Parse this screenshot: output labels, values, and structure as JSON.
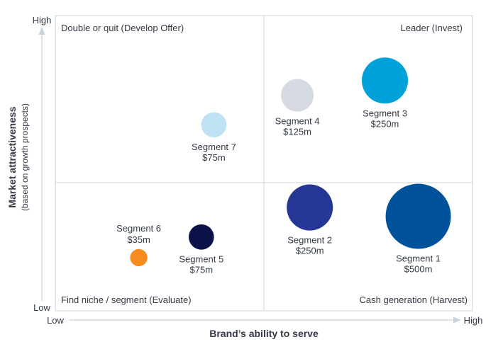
{
  "chart_data": {
    "type": "bubble",
    "title": "",
    "xlabel": "Brand’s ability to serve",
    "ylabel": "Market attractiveness",
    "ylabel_sub": "(based on growth prospects)",
    "x_axis": {
      "low_label": "Low",
      "high_label": "High"
    },
    "y_axis": {
      "low_label": "Low",
      "high_label": "High"
    },
    "xlim": [
      0,
      1
    ],
    "ylim": [
      0,
      1
    ],
    "grid": false,
    "quadrants": {
      "top_left": "Double or quit (Develop Offer)",
      "top_right": "Leader (Invest)",
      "bottom_left": "Find niche / segment (Evaluate)",
      "bottom_right": "Cash generation (Harvest)"
    },
    "points": [
      {
        "name": "Segment 1",
        "value_label": "$500m",
        "value": 500,
        "x": 0.87,
        "y": 0.32,
        "color": "#00529b"
      },
      {
        "name": "Segment 2",
        "value_label": "$250m",
        "value": 250,
        "x": 0.61,
        "y": 0.35,
        "color": "#253694"
      },
      {
        "name": "Segment 3",
        "value_label": "$250m",
        "value": 250,
        "x": 0.79,
        "y": 0.78,
        "color": "#00a1d8"
      },
      {
        "name": "Segment 4",
        "value_label": "$125m",
        "value": 125,
        "x": 0.58,
        "y": 0.73,
        "color": "#d5dae0"
      },
      {
        "name": "Segment 5",
        "value_label": "$75m",
        "value": 75,
        "x": 0.35,
        "y": 0.25,
        "color": "#0a1248"
      },
      {
        "name": "Segment 6",
        "value_label": "$35m",
        "value": 35,
        "x": 0.2,
        "y": 0.18,
        "color": "#f68b1f"
      },
      {
        "name": "Segment 7",
        "value_label": "$75m",
        "value": 75,
        "x": 0.38,
        "y": 0.63,
        "color": "#bfe3f5"
      }
    ]
  }
}
